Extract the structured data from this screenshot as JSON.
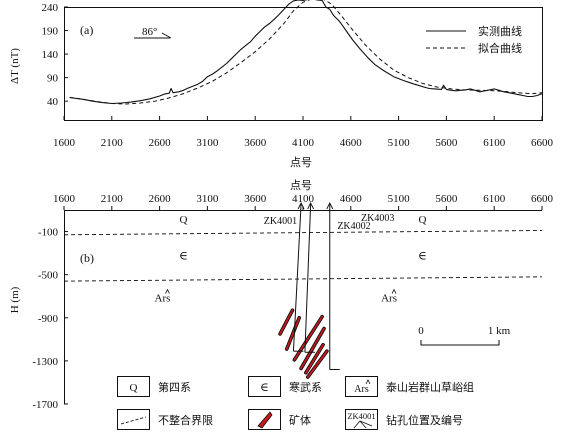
{
  "chart_data": [
    {
      "type": "line",
      "panel_label": "(a)",
      "direction_label": "86°",
      "ylabel": "ΔT (nT)",
      "xlabel": "点号",
      "xlim": [
        1600,
        6600
      ],
      "ylim": [
        0,
        240
      ],
      "x_ticks": [
        "1600",
        "2100",
        "2600",
        "3100",
        "3600",
        "4100",
        "4600",
        "5100",
        "5600",
        "6100",
        "6600"
      ],
      "y_ticks": [
        "40",
        "90",
        "140",
        "190",
        "240"
      ],
      "legend_position": "top-right",
      "series": [
        {
          "name": "实测曲线",
          "style": "solid",
          "x": [
            1660,
            1720,
            1800,
            1900,
            2000,
            2100,
            2200,
            2300,
            2400,
            2500,
            2600,
            2650,
            2700,
            2720,
            2740,
            2800,
            2850,
            2900,
            2950,
            3000,
            3050,
            3100,
            3150,
            3200,
            3250,
            3300,
            3350,
            3400,
            3450,
            3500,
            3550,
            3600,
            3650,
            3700,
            3750,
            3800,
            3850,
            3900,
            3950,
            4000,
            4050,
            4100,
            4150,
            4200,
            4250,
            4300,
            4340,
            4380,
            4420,
            4480,
            4550,
            4620,
            4700,
            4780,
            4850,
            4950,
            5050,
            5150,
            5250,
            5350,
            5420,
            5480,
            5550,
            5570,
            5600,
            5650,
            5700,
            5750,
            5800,
            5850,
            5900,
            5950,
            6000,
            6050,
            6100,
            6150,
            6200,
            6250,
            6300,
            6350,
            6400,
            6450,
            6500,
            6550,
            6600
          ],
          "y": [
            48,
            46,
            44,
            40,
            37,
            35,
            36,
            38,
            41,
            45,
            51,
            55,
            57,
            67,
            58,
            60,
            63,
            68,
            72,
            76,
            82,
            92,
            97,
            104,
            112,
            120,
            130,
            140,
            150,
            158,
            166,
            178,
            188,
            198,
            205,
            214,
            224,
            235,
            246,
            253,
            255,
            254,
            256,
            257,
            255,
            254,
            240,
            235,
            222,
            210,
            190,
            170,
            150,
            132,
            118,
            104,
            92,
            84,
            77,
            71,
            67,
            66,
            65,
            74,
            65,
            63,
            62,
            63,
            64,
            66,
            63,
            60,
            62,
            64,
            66,
            63,
            60,
            58,
            56,
            54,
            52,
            50,
            50,
            52,
            56
          ]
        },
        {
          "name": "拟合曲线",
          "style": "dashed",
          "x": [
            1660,
            1800,
            1950,
            2100,
            2250,
            2400,
            2550,
            2700,
            2850,
            3000,
            3150,
            3300,
            3450,
            3600,
            3750,
            3900,
            4000,
            4100,
            4200,
            4300,
            4400,
            4500,
            4600,
            4750,
            4900,
            5050,
            5200,
            5350,
            5500,
            5650,
            5800,
            5950,
            6100,
            6250,
            6400,
            6500,
            6600
          ],
          "y": [
            48,
            44,
            39,
            35,
            34,
            36,
            40,
            47,
            56,
            68,
            82,
            100,
            122,
            145,
            172,
            205,
            232,
            250,
            258,
            258,
            246,
            222,
            196,
            160,
            130,
            106,
            90,
            78,
            70,
            66,
            64,
            63,
            62,
            60,
            57,
            56,
            58
          ]
        }
      ]
    },
    {
      "type": "diagram",
      "panel_label": "(b)",
      "ylabel": "H (m)",
      "xlabel": "点号",
      "xlim": [
        1600,
        6600
      ],
      "ylim": [
        -1700,
        100
      ],
      "x_ticks": [
        "1600",
        "2100",
        "2600",
        "3100",
        "3600",
        "4100",
        "4600",
        "5100",
        "5600",
        "6100",
        "6600"
      ],
      "y_ticks": [
        "-100",
        "-500",
        "-900",
        "-1300",
        "-1700"
      ],
      "boundaries": [
        {
          "x": [
            1600,
            6600
          ],
          "y": [
            -130,
            -90
          ]
        },
        {
          "x": [
            1600,
            6600
          ],
          "y": [
            -560,
            -520
          ]
        }
      ],
      "unit_labels": [
        {
          "text": "Q",
          "x": 2850,
          "y": -20
        },
        {
          "text": "Q",
          "x": 5350,
          "y": -20
        },
        {
          "text": "∈",
          "x": 2850,
          "y": -360
        },
        {
          "text": "∈",
          "x": 5350,
          "y": -360
        },
        {
          "text": "Ars",
          "x": 2630,
          "y": -750
        },
        {
          "text": "Ars",
          "x": 5000,
          "y": -750
        }
      ],
      "boreholes": [
        {
          "name": "ZK4001",
          "x_top": 4080,
          "x_bottom": 4000,
          "depth": -1210
        },
        {
          "name": "ZK4002",
          "x_top": 4180,
          "x_bottom": 4120,
          "depth": -1220
        },
        {
          "name": "ZK4003",
          "x_top": 4380,
          "x_bottom": 4380,
          "depth": -1380
        }
      ],
      "ore_bodies": [
        {
          "x": [
            3860,
            3990
          ],
          "y": [
            -1050,
            -830
          ]
        },
        {
          "x": [
            3930,
            4060
          ],
          "y": [
            -1190,
            -900
          ]
        },
        {
          "x": [
            4010,
            4300
          ],
          "y": [
            -1290,
            -890
          ]
        },
        {
          "x": [
            4080,
            4320
          ],
          "y": [
            -1370,
            -1000
          ]
        },
        {
          "x": [
            4130,
            4310
          ],
          "y": [
            -1410,
            -1150
          ]
        },
        {
          "x": [
            4150,
            4350
          ],
          "y": [
            -1450,
            -1210
          ]
        }
      ],
      "scale_bar": {
        "start": "0",
        "end": "1 km"
      }
    }
  ],
  "legend": [
    {
      "symbol": "Q",
      "label": "第四系"
    },
    {
      "symbol": "∈",
      "label": "寒武系"
    },
    {
      "symbol": "Ars",
      "label": "泰山岩群山草峪组"
    },
    {
      "symbol": "dashed-line",
      "label": "不整合界限"
    },
    {
      "symbol": "ore",
      "label": "矿体"
    },
    {
      "symbol": "ZK4001",
      "label": "钻孔位置及编号"
    }
  ],
  "colors": {
    "ore": "#c8161d",
    "line": "#111111"
  }
}
